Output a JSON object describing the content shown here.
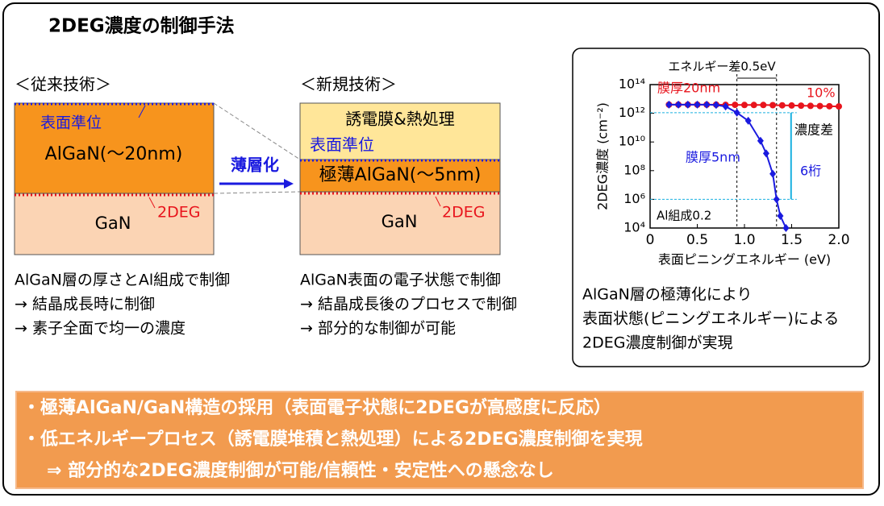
{
  "title": "2DEG濃度の制御手法",
  "conventional": {
    "heading": "＜従来技術＞",
    "surface_state": "表面準位",
    "algan": "AlGaN(～20nm)",
    "twodeg": "2DEG",
    "gan": "GaN",
    "notes": [
      "AlGaN層の厚さとAl組成で制御",
      "→ 結晶成長時に制御",
      "→ 素子全面で均一の濃度"
    ]
  },
  "arrow_label": "薄層化",
  "new": {
    "heading": "＜新規技術＞",
    "treatment": "誘電膜&熱処理",
    "surface_state": "表面準位",
    "algan": "極薄AlGaN(～5nm)",
    "twodeg": "2DEG",
    "gan": "GaN",
    "notes": [
      "AlGaN表面の電子状態で制御",
      "→ 結晶成長後のプロセスで制御",
      "→ 部分的な制御が可能"
    ]
  },
  "chart_caption": [
    "AlGaN層の極薄化により",
    "表面状態(ピニングエネルギー)による",
    "2DEG濃度制御が実現"
  ],
  "summary": [
    "・極薄AlGaN/GaN構造の採用（表面電子状態に2DEGが高感度に反応）",
    "・低エネルギープロセス（誘電膜堆積と熱処理）による2DEG濃度制御を実現",
    "⇒ 部分的な2DEG濃度制御が可能/信頼性・安定性への懸念なし"
  ],
  "chart_data": {
    "type": "line",
    "x_label": "表面ピニングエネルギー (eV)",
    "y_label": "2DEG濃度 (cm⁻²)",
    "xlim": [
      0,
      2
    ],
    "ylim": [
      10000.0,
      100000000000000.0
    ],
    "log_y": true,
    "xticks": [
      0,
      0.5,
      {
        "value": 1,
        "label": "1.0"
      },
      1.5,
      {
        "value": 2,
        "label": "2.0"
      }
    ],
    "yticks": [
      {
        "value": 10000.0,
        "label": "10⁴"
      },
      {
        "value": 1000000.0,
        "label": "10⁶"
      },
      {
        "value": 100000000.0,
        "label": "10⁸"
      },
      {
        "value": 10000000000.0,
        "label": "10¹⁰"
      },
      {
        "value": 1000000000000.0,
        "label": "10¹²"
      },
      {
        "value": 100000000000000.0,
        "label": "10¹⁴"
      }
    ],
    "series": [
      {
        "name": "膜厚20nm",
        "color": "#e8141c",
        "x": [
          0.2,
          0.3,
          0.4,
          0.5,
          0.6,
          0.7,
          0.8,
          0.9,
          1.0,
          1.1,
          1.2,
          1.3,
          1.4,
          1.5,
          1.6,
          1.7,
          1.8,
          1.9,
          2.0
        ],
        "values": [
          4000000000000.0,
          4000000000000.0,
          4000000000000.0,
          4000000000000.0,
          4000000000000.0,
          4000000000000.0,
          3900000000000.0,
          3900000000000.0,
          3800000000000.0,
          3800000000000.0,
          3800000000000.0,
          3700000000000.0,
          3600000000000.0,
          3500000000000.0,
          3400000000000.0,
          3300000000000.0,
          3200000000000.0,
          3100000000000.0,
          3000000000000.0
        ]
      },
      {
        "name": "膜厚5nm",
        "color": "#1a1adf",
        "x": [
          0.2,
          0.3,
          0.4,
          0.5,
          0.6,
          0.7,
          0.8,
          0.92,
          1.04,
          1.17,
          1.23,
          1.3,
          1.34,
          1.38,
          1.44
        ],
        "values": [
          4000000000000.0,
          4000000000000.0,
          4000000000000.0,
          4000000000000.0,
          4000000000000.0,
          3800000000000.0,
          3000000000000.0,
          1100000000000.0,
          300000000000.0,
          12000000000.0,
          1600000000.0,
          60000000.0,
          1000000.0,
          70000.0,
          10000.0
        ]
      }
    ],
    "annotations": [
      "エネルギー差0.5eV",
      "10%",
      "濃度差",
      "6桁",
      "Al組成0.2"
    ]
  }
}
